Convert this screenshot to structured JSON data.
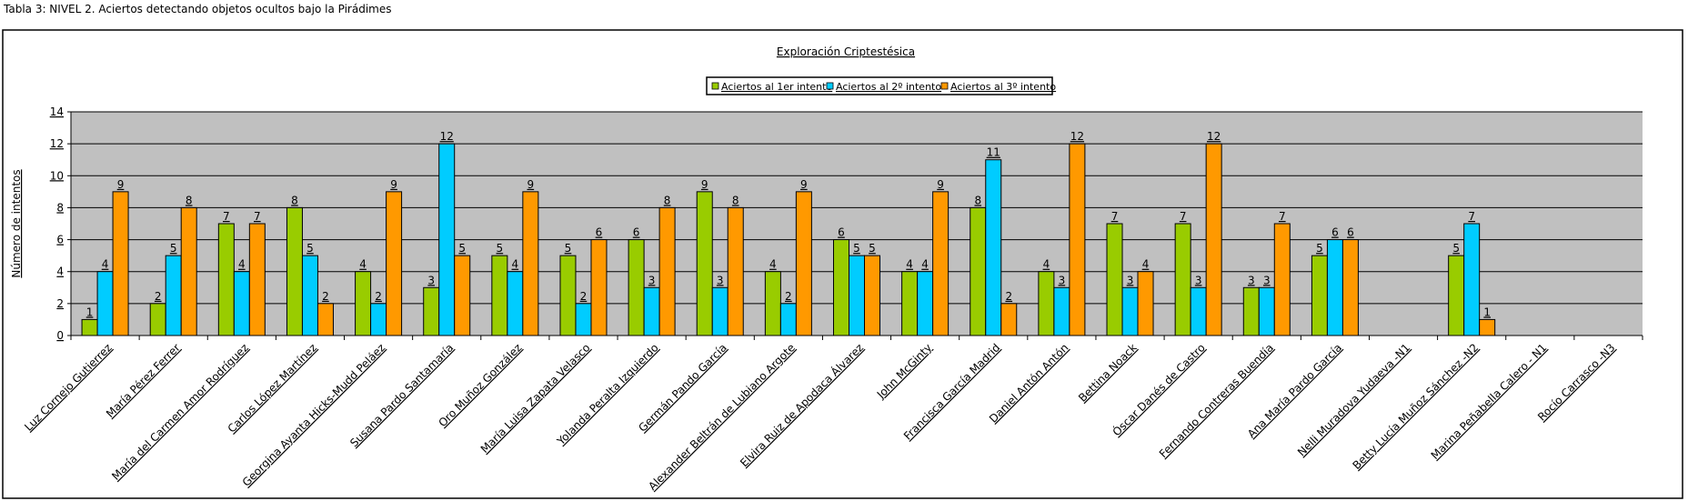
{
  "caption": "Tabla 3: NIVEL 2. Aciertos detectando objetos ocultos bajo la Pirádimes",
  "chart_data": {
    "type": "bar",
    "title": "Exploración Criptestésica",
    "xlabel": "",
    "ylabel": "Número de intentos",
    "ylim": [
      0,
      14
    ],
    "yticks": [
      0,
      2,
      4,
      6,
      8,
      10,
      12,
      14
    ],
    "grid": true,
    "legend_placement": "top-center",
    "categories": [
      "Luz Cornejo Gutierrez",
      "María Pérez Ferrer",
      "María del Carmen Amor Rodríguez",
      "Carlos López Martínez",
      "Georgina Ayanta Hicks-Mudd Peláez",
      "Susana Pardo Santamaría",
      "Oro Muñoz González",
      "María Luisa Zapata Velasco",
      "Yolanda Peralta Izquierdo",
      "Germán Pando García",
      "Alexander Beltrán de Lubiano Argote",
      "Elvira Ruiz de Apodaca Álvarez",
      "John McGinty",
      "Francisca García Madrid",
      "Daniel Antón Antón",
      "Bettina Noack",
      "Óscar Danés de Castro",
      "Fernando Contreras Buendía",
      "Ana María Pardo García",
      "Nelli Muradova Yudaeva -N1",
      "Betty Lucía Muñoz Sánchez -N2",
      "Marina Peñabella Calero - N1",
      "Rocío Carrasco -N3"
    ],
    "series": [
      {
        "name": "Aciertos al 1er intento",
        "color": "#99cc00",
        "values": [
          1,
          2,
          7,
          8,
          4,
          3,
          5,
          5,
          6,
          9,
          4,
          6,
          4,
          8,
          4,
          7,
          7,
          3,
          5,
          null,
          5,
          null,
          null
        ]
      },
      {
        "name": "Aciertos al 2º intento",
        "color": "#00ccff",
        "values": [
          4,
          5,
          4,
          5,
          2,
          12,
          4,
          2,
          3,
          3,
          2,
          5,
          4,
          11,
          3,
          3,
          3,
          3,
          6,
          null,
          7,
          null,
          null
        ]
      },
      {
        "name": "Aciertos al 3º intento",
        "color": "#ff9900",
        "values": [
          9,
          8,
          7,
          2,
          9,
          5,
          9,
          6,
          8,
          8,
          9,
          5,
          9,
          2,
          12,
          4,
          12,
          7,
          6,
          null,
          1,
          null,
          null
        ]
      }
    ],
    "plot_background": "#c0c0c0"
  }
}
